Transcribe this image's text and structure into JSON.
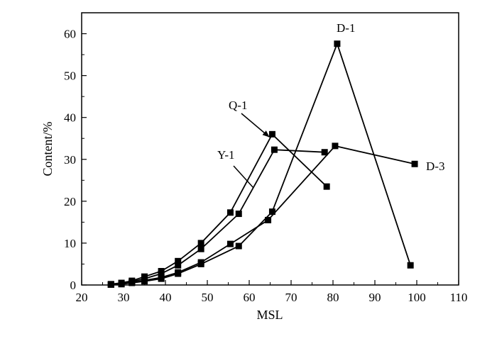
{
  "chart_data": {
    "type": "line",
    "title": "",
    "xlabel": "MSL",
    "ylabel": "Content/%",
    "xlim": [
      20,
      110
    ],
    "ylim": [
      0,
      65
    ],
    "xticks": [
      20,
      30,
      40,
      50,
      60,
      70,
      80,
      90,
      100,
      110
    ],
    "yticks": [
      0,
      10,
      20,
      30,
      40,
      50,
      60
    ],
    "grid": false,
    "legend": "none",
    "series": [
      {
        "name": "Q-1",
        "x": [
          27,
          29.5,
          32,
          35,
          39,
          43,
          48.5,
          55.5,
          65.5,
          78.5
        ],
        "y": [
          0.2,
          0.5,
          1.0,
          2.0,
          3.3,
          5.7,
          10.0,
          17.3,
          36.0,
          23.5
        ]
      },
      {
        "name": "Y-1",
        "x": [
          27,
          29.5,
          32,
          35,
          39,
          43,
          48.5,
          57.5,
          66,
          78
        ],
        "y": [
          0.1,
          0.3,
          0.8,
          1.5,
          2.7,
          4.7,
          8.6,
          17.0,
          32.3,
          31.7
        ]
      },
      {
        "name": "D-1",
        "x": [
          27,
          29.5,
          32,
          35,
          39,
          43,
          48.5,
          57.5,
          65.5,
          81,
          98.5
        ],
        "y": [
          0.1,
          0.2,
          0.5,
          0.9,
          1.5,
          2.7,
          5.0,
          9.3,
          17.5,
          57.6,
          4.7
        ]
      },
      {
        "name": "D-3",
        "x": [
          27,
          29.5,
          32,
          35,
          39,
          43,
          48.5,
          55.5,
          64.5,
          80.5,
          99.5
        ],
        "y": [
          0.1,
          0.3,
          0.6,
          1.1,
          1.8,
          3.0,
          5.4,
          9.8,
          15.5,
          33.2,
          28.9
        ]
      }
    ],
    "annotations": [
      {
        "text": "Q-1",
        "series": "Q-1"
      },
      {
        "text": "Y-1",
        "series": "Y-1"
      },
      {
        "text": "D-1",
        "series": "D-1"
      },
      {
        "text": "D-3",
        "series": "D-3"
      }
    ]
  }
}
